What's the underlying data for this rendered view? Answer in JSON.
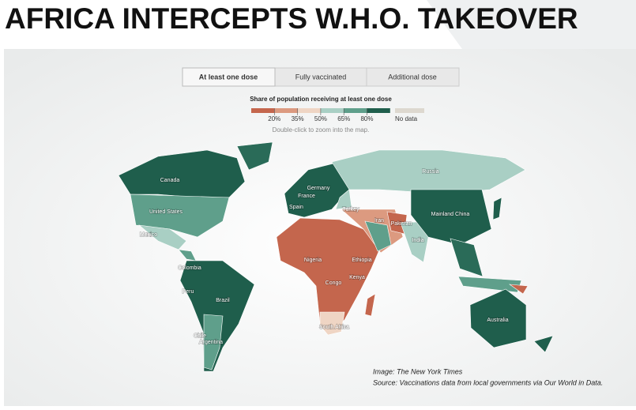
{
  "header": {
    "title": "AFRICA INTERCEPTS W.H.O. TAKEOVER"
  },
  "tabs": [
    "At least one dose",
    "Fully vaccinated",
    "Additional dose"
  ],
  "legend": {
    "title": "Share of population receiving at least one dose",
    "colors": [
      "#c4664d",
      "#dc9a80",
      "#efd5c4",
      "#a9cfc4",
      "#5f9f8b",
      "#1f5e4c"
    ],
    "ticks": [
      "20%",
      "35%",
      "50%",
      "65%",
      "80%"
    ],
    "no_data": {
      "label": "No data",
      "color": "#ddd8cf"
    }
  },
  "note": "Double-click to zoom into the map.",
  "map": {
    "labels": [
      "Canada",
      "United States",
      "Mexico",
      "Colombia",
      "Peru",
      "Brazil",
      "Chile",
      "Argentina",
      "Spain",
      "France",
      "Germany",
      "Russia",
      "Turkey",
      "Iran",
      "Pakistan",
      "India",
      "Mainland China",
      "Nigeria",
      "Ethiopia",
      "Congo",
      "Kenya",
      "South Africa",
      "Australia"
    ]
  },
  "credits": [
    "Image: The New York Times",
    "Source: Vaccinations data from local governments via Our World in Data."
  ]
}
